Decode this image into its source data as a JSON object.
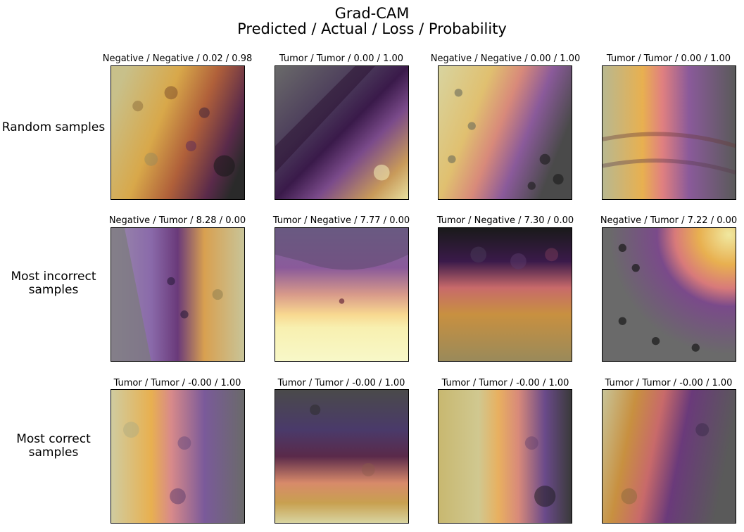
{
  "figure": {
    "title_line1": "Grad-CAM",
    "title_line2": "Predicted / Actual / Loss / Probability"
  },
  "rows": [
    {
      "label_lines": [
        "Random samples"
      ],
      "panels": [
        {
          "caption": "Negative / Negative / 0.02 / 0.98"
        },
        {
          "caption": "Tumor / Tumor / 0.00 / 1.00"
        },
        {
          "caption": "Negative / Negative / 0.00 / 1.00"
        },
        {
          "caption": "Tumor / Tumor / 0.00 / 1.00"
        }
      ]
    },
    {
      "label_lines": [
        "Most incorrect",
        "samples"
      ],
      "panels": [
        {
          "caption": "Negative / Tumor / 8.28 / 0.00"
        },
        {
          "caption": "Tumor / Negative / 7.77 / 0.00"
        },
        {
          "caption": "Tumor / Negative / 7.30 / 0.00"
        },
        {
          "caption": "Negative / Tumor / 7.22 / 0.00"
        }
      ]
    },
    {
      "label_lines": [
        "Most correct",
        "samples"
      ],
      "panels": [
        {
          "caption": "Tumor / Tumor / -0.00 / 1.00"
        },
        {
          "caption": "Tumor / Tumor / -0.00 / 1.00"
        },
        {
          "caption": "Tumor / Tumor / -0.00 / 1.00"
        },
        {
          "caption": "Tumor / Tumor / -0.00 / 1.00"
        }
      ]
    }
  ],
  "heatmap_colormap": [
    "#f5f0b0",
    "#e8b840",
    "#d97a6a",
    "#8a3a8a",
    "#3a1a5a",
    "#1a1a1a"
  ]
}
